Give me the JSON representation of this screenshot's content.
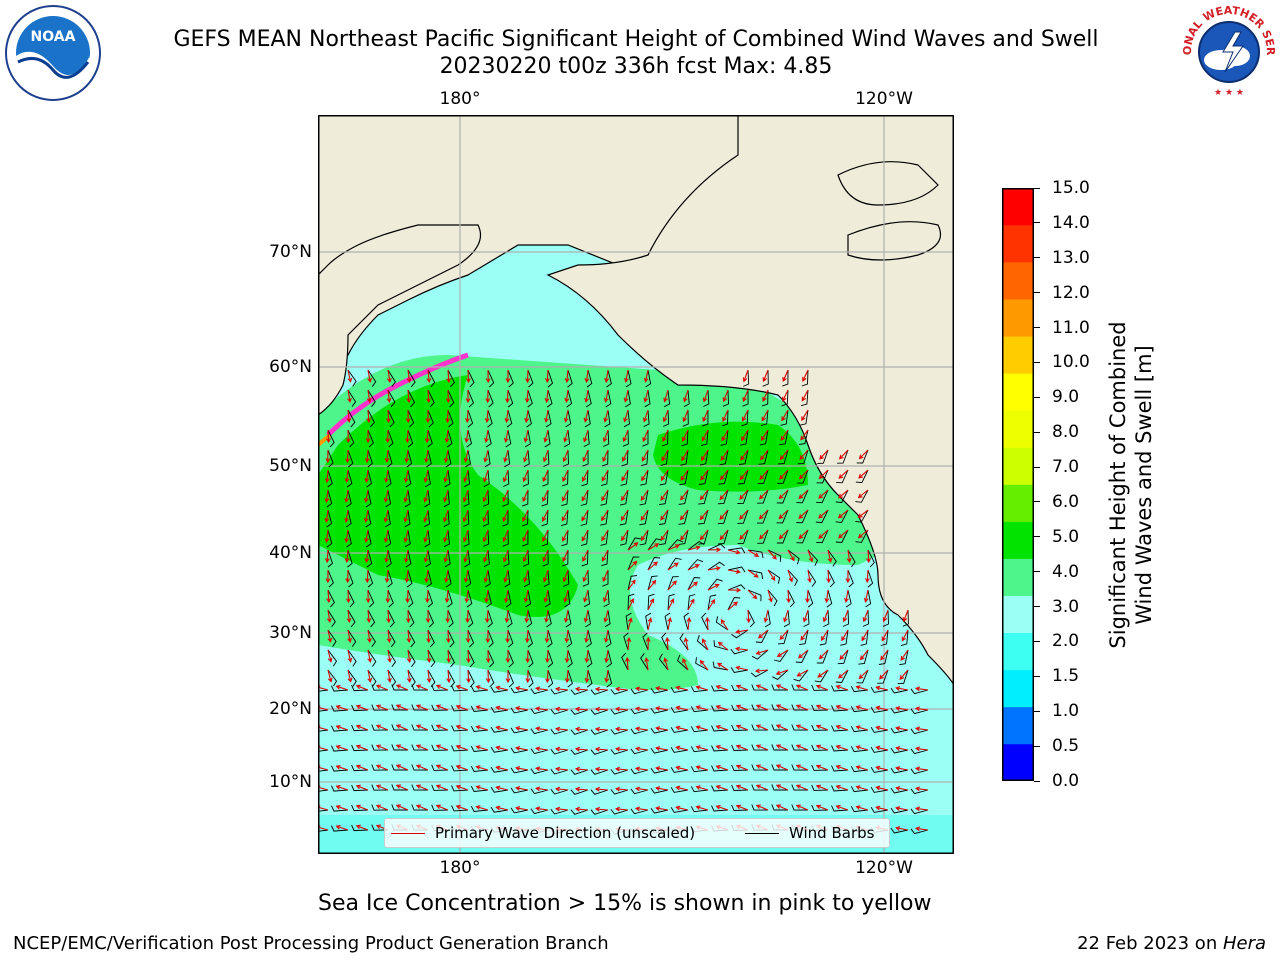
{
  "title": {
    "line1": "GEFS MEAN Northeast Pacific Significant Height of Combined Wind Waves and Swell",
    "line2": "20230220 t00z 336h fcst   Max: 4.85"
  },
  "logos": {
    "left": {
      "name": "noaa-logo",
      "text": "NOAA"
    },
    "right": {
      "name": "nws-logo",
      "text": "NATIONAL WEATHER SERVICE"
    }
  },
  "map": {
    "lon_labels_top": [
      "180°",
      "120°W"
    ],
    "lon_labels_bottom": [
      "180°",
      "120°W"
    ],
    "lat_labels": [
      "70°N",
      "60°N",
      "50°N",
      "40°N",
      "30°N",
      "20°N",
      "10°N"
    ],
    "colors": {
      "land": "#efecda",
      "ocean_low": "#9bfff6",
      "ocean_mid": "#4df58a",
      "ocean_high": "#00e400",
      "wave_arrow": "#e00000",
      "wind_barb": "#000000",
      "gridline": "#b0b0b0",
      "ice": "#ff33cc"
    }
  },
  "legend": {
    "wave": "Primary Wave Direction (unscaled)",
    "wind": "Wind Barbs"
  },
  "colorbar": {
    "title_line1": "Significant Height of Combined",
    "title_line2": "Wind Waves and Swell [m]",
    "ticks": [
      "0.0",
      "0.5",
      "1.0",
      "1.5",
      "2.0",
      "3.0",
      "4.0",
      "5.0",
      "6.0",
      "7.0",
      "8.0",
      "9.0",
      "10.0",
      "11.0",
      "12.0",
      "13.0",
      "14.0",
      "15.0"
    ],
    "colors": [
      "#0000ff",
      "#0073ff",
      "#00eeff",
      "#3dfff2",
      "#9bfff6",
      "#4df58a",
      "#00e400",
      "#66ee00",
      "#ccff00",
      "#eeff00",
      "#ffff00",
      "#ffcc00",
      "#ff9900",
      "#ff6600",
      "#ff3300",
      "#ff0000"
    ]
  },
  "footnote": "Sea Ice Concentration > 15% is shown in pink to yellow",
  "footer": {
    "left": "NCEP/EMC/Verification Post Processing Product Generation Branch",
    "right_date": "22 Feb 2023 on ",
    "right_machine": "Hera"
  }
}
